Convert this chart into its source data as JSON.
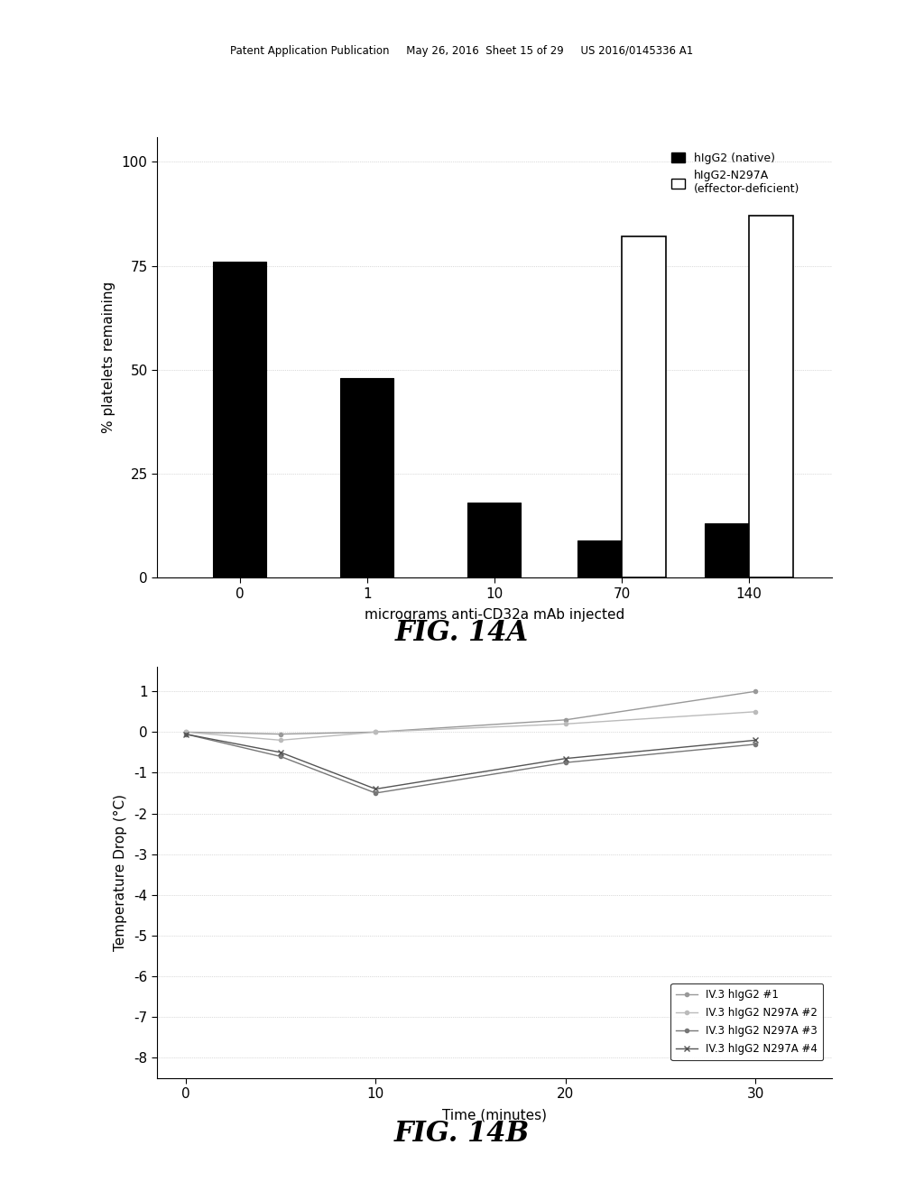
{
  "background_color": "#ffffff",
  "header_text": "Patent Application Publication     May 26, 2016  Sheet 15 of 29     US 2016/0145336 A1",
  "bar_categories": [
    "0",
    "1",
    "10",
    "70",
    "140"
  ],
  "bar_native_values": [
    76,
    48,
    18,
    9,
    13
  ],
  "bar_effector_values": [
    null,
    null,
    null,
    82,
    87
  ],
  "bar_native_color": "#000000",
  "bar_effector_color": "#ffffff",
  "bar_effector_edge": "#000000",
  "bar_ylabel": "% platelets remaining",
  "bar_xlabel": "micrograms anti-CD32a mAb injected",
  "bar_yticks": [
    0,
    25,
    50,
    75,
    100
  ],
  "bar_ylim": [
    0,
    106
  ],
  "bar_legend_native": "hIgG2 (native)",
  "bar_legend_effector": "hIgG2-N297A\n(effector-deficient)",
  "fig14a_label": "FIG. 14A",
  "line_series": [
    {
      "label": "IV.3 hIgG2 #1",
      "x": [
        0,
        5,
        10,
        20,
        30
      ],
      "y": [
        0.0,
        -0.05,
        0.0,
        0.3,
        1.0
      ],
      "color": "#999999",
      "marker": "o",
      "markersize": 3,
      "linewidth": 1.0,
      "linestyle": "-"
    },
    {
      "label": "IV.3 hIgG2 N297A #2",
      "x": [
        0,
        5,
        10,
        20,
        30
      ],
      "y": [
        0.0,
        -0.2,
        0.0,
        0.2,
        0.5
      ],
      "color": "#bbbbbb",
      "marker": "o",
      "markersize": 3,
      "linewidth": 1.0,
      "linestyle": "-"
    },
    {
      "label": "IV.3 hIgG2 N297A #3",
      "x": [
        0,
        5,
        10,
        20,
        30
      ],
      "y": [
        -0.05,
        -0.6,
        -1.5,
        -0.75,
        -0.3
      ],
      "color": "#777777",
      "marker": "o",
      "markersize": 3,
      "linewidth": 1.0,
      "linestyle": "-"
    },
    {
      "label": "IV.3 hIgG2 N297A #4",
      "x": [
        0,
        5,
        10,
        20,
        30
      ],
      "y": [
        -0.05,
        -0.5,
        -1.4,
        -0.65,
        -0.2
      ],
      "color": "#555555",
      "marker": "x",
      "markersize": 4,
      "linewidth": 1.0,
      "linestyle": "-"
    }
  ],
  "line_ylabel": "Temperature Drop (°C)",
  "line_xlabel": "Time (minutes)",
  "line_yticks": [
    1,
    0,
    -1,
    -2,
    -3,
    -4,
    -5,
    -6,
    -7,
    -8
  ],
  "line_ylim": [
    -8.5,
    1.6
  ],
  "line_xticks": [
    0,
    10,
    20,
    30
  ],
  "line_xlim": [
    -1.5,
    34
  ],
  "fig14b_label": "FIG. 14B"
}
